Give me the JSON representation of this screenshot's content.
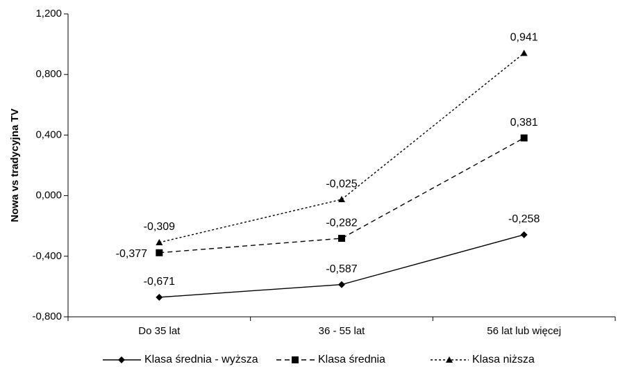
{
  "chart_data": {
    "type": "line",
    "title": "",
    "xlabel": "",
    "ylabel": "Nowa vs tradycyjna TV",
    "categories": [
      "Do 35 lat",
      "36 - 55 lat",
      "56 lat lub więcej"
    ],
    "ylim": [
      -0.8,
      1.2
    ],
    "yticks": [
      -0.8,
      -0.4,
      0.0,
      0.4,
      0.8,
      1.2
    ],
    "ytick_labels": [
      "-0,800",
      "-0,400",
      "0,000",
      "0,400",
      "0,800",
      "1,200"
    ],
    "grid": false,
    "legend_position": "bottom",
    "series": [
      {
        "name": "Klasa średnia - wyższa",
        "values": [
          -0.671,
          -0.587,
          -0.258
        ],
        "labels": [
          "-0,671",
          "-0,587",
          "-0,258"
        ],
        "marker": "diamond",
        "line_style": "solid",
        "color": "#000000"
      },
      {
        "name": "Klasa średnia",
        "values": [
          -0.377,
          -0.282,
          0.381
        ],
        "labels": [
          "-0,377",
          "-0,282",
          "0,381"
        ],
        "marker": "square",
        "line_style": "dashed",
        "color": "#000000"
      },
      {
        "name": "Klasa niższa",
        "values": [
          -0.309,
          -0.025,
          0.941
        ],
        "labels": [
          "-0,309",
          "-0,025",
          "0,941"
        ],
        "marker": "triangle",
        "line_style": "dotted",
        "color": "#000000"
      }
    ]
  }
}
